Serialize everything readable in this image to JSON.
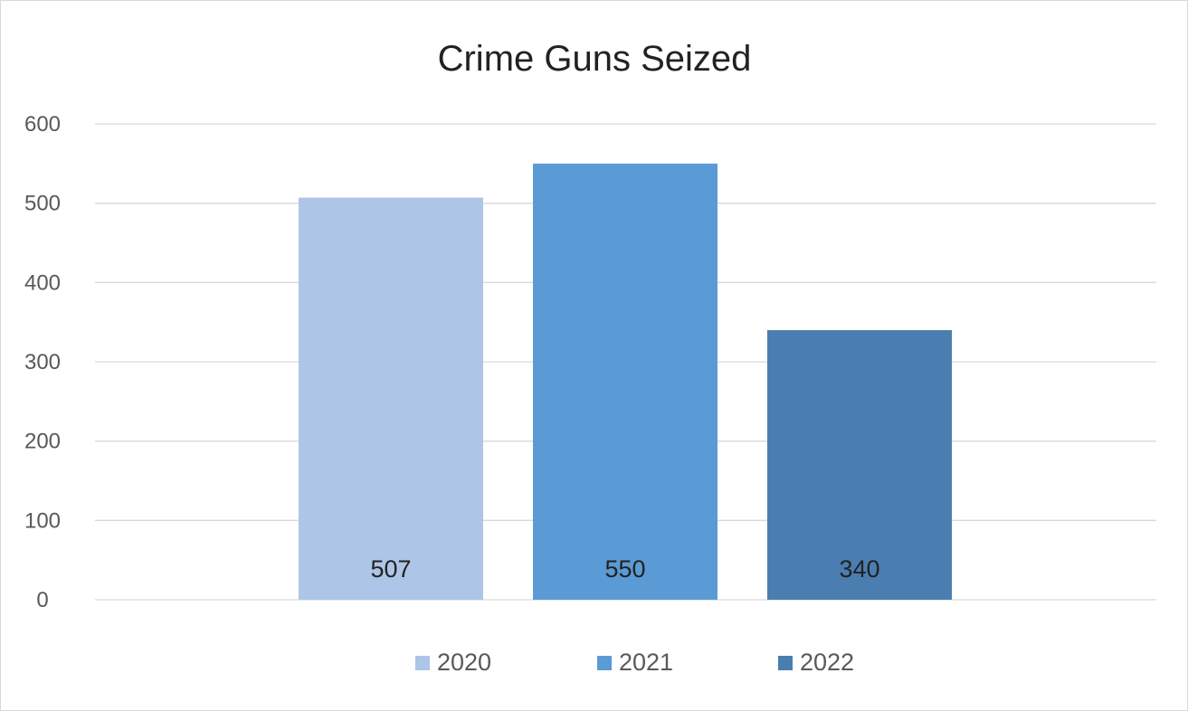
{
  "chart_data": {
    "type": "bar",
    "title": "Crime Guns Seized",
    "xlabel": "",
    "ylabel": "",
    "ylim": [
      0,
      600
    ],
    "yticks": [
      0,
      100,
      200,
      300,
      400,
      500,
      600
    ],
    "ytick_labels": [
      "0",
      "100",
      "200",
      "300",
      "400",
      "500",
      "600"
    ],
    "grid": true,
    "legend_position": "bottom",
    "series": [
      {
        "name": "2020",
        "value": 507,
        "label": "507",
        "color": "#adc5e6"
      },
      {
        "name": "2021",
        "value": 550,
        "label": "550",
        "color": "#5b9bd5"
      },
      {
        "name": "2022",
        "value": 340,
        "label": "340",
        "color": "#4a7eb0"
      }
    ]
  }
}
